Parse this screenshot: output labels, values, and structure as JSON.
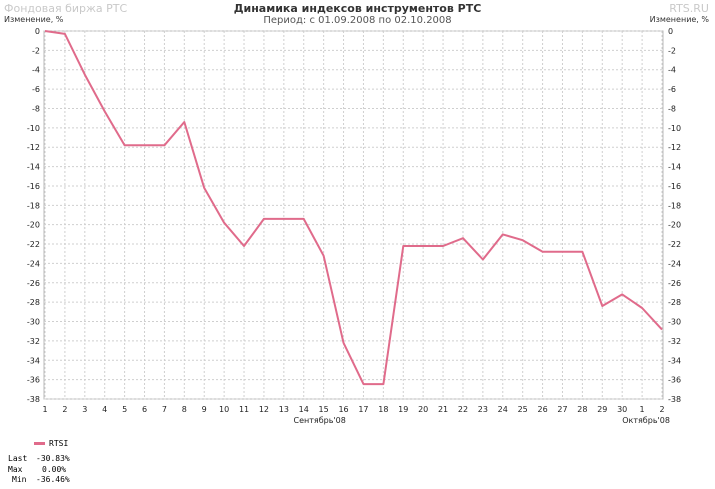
{
  "header": {
    "watermark_left": "Фондовая биржа РТС",
    "watermark_right": "RTS.RU",
    "title": "Динамика индексов инструментов РТС",
    "subtitle": "Период: с 01.09.2008 по 02.10.2008",
    "ylabel_left": "Изменение, %",
    "ylabel_right": "Изменение, %"
  },
  "legend": {
    "series_name": "RTSI",
    "last_label": "Last",
    "last_value": "-30.83%",
    "max_label": "Max",
    "max_value": "0.00%",
    "min_label": "Min",
    "min_value": "-36.46%"
  },
  "chart_data": {
    "type": "line",
    "title": "Динамика индексов инструментов РТС",
    "subtitle": "Период: с 01.09.2008 по 02.10.2008",
    "ylabel": "Изменение, %",
    "ylim": [
      -38,
      0
    ],
    "yticks": [
      0,
      -2,
      -4,
      -6,
      -8,
      -10,
      -12,
      -14,
      -16,
      -18,
      -20,
      -22,
      -24,
      -26,
      -28,
      -30,
      -32,
      -34,
      -36,
      -38
    ],
    "x_tick_labels": [
      "1",
      "2",
      "3",
      "4",
      "5",
      "6",
      "7",
      "8",
      "9",
      "10",
      "11",
      "12",
      "13",
      "14",
      "15",
      "16",
      "17",
      "18",
      "19",
      "20",
      "21",
      "22",
      "23",
      "24",
      "25",
      "26",
      "27",
      "28",
      "29",
      "30",
      "1",
      "2"
    ],
    "x_group_labels": [
      "Сентябрь'08",
      "Октябрь'08"
    ],
    "grid": true,
    "color": "#e06b8b",
    "series": [
      {
        "name": "RTSI",
        "values": [
          0,
          -0.3,
          -4.5,
          -8.3,
          -11.8,
          -11.8,
          -11.8,
          -9.4,
          -16.2,
          -19.8,
          -22.2,
          -19.4,
          -19.4,
          -19.4,
          -23.2,
          -32.2,
          -36.46,
          -36.46,
          -22.2,
          -22.2,
          -22.2,
          -21.4,
          -23.6,
          -21.0,
          -21.6,
          -22.8,
          -22.8,
          -22.8,
          -28.4,
          -27.2,
          -28.6,
          -30.83
        ]
      }
    ]
  }
}
